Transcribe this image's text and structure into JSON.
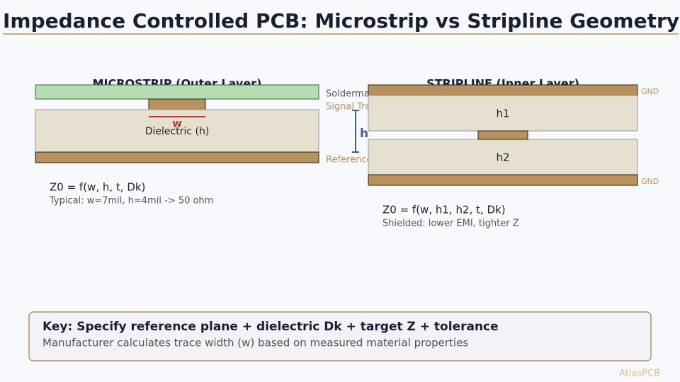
{
  "header": {
    "title": "Impedance Controlled PCB: Microstrip vs Stripline Geometry"
  },
  "microstrip": {
    "heading": "MICROSTRIP (Outer Layer)",
    "soldermask_label": "Soldermask",
    "trace_label": "Signal Trace",
    "reference_label": "Reference Plane",
    "width_label": "w",
    "dielectric_label": "Dielectric (h)",
    "height_label": "h",
    "formula": "Z0 = f(w, h, t, Dk)",
    "note": "Typical: w=7mil, h=4mil -> 50 ohm"
  },
  "stripline": {
    "heading": "STRIPLINE (Inner Layer)",
    "top_ground_label": "GND",
    "upper_dielectric_label": "h1",
    "lower_dielectric_label": "h2",
    "bottom_ground_label": "GND",
    "formula": "Z0 = f(w, h1, h2, t, Dk)",
    "note": "Shielded: lower EMI, tighter Z"
  },
  "key": {
    "title": "Key: Specify reference plane + dielectric Dk + target Z + tolerance",
    "text": "Manufacturer calculates trace width (w) based on measured material properties"
  },
  "footer": {
    "brand": "AtlasPCB"
  }
}
